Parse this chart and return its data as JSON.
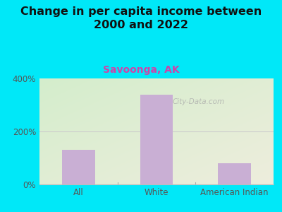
{
  "title": "Change in per capita income between\n2000 and 2022",
  "subtitle": "Savoonga, AK",
  "categories": [
    "All",
    "White",
    "American Indian"
  ],
  "values": [
    130,
    340,
    80
  ],
  "bar_color": "#c9afd4",
  "background_outer": "#00e8f8",
  "grad_color_topleft": "#d4edcc",
  "grad_color_bottomright": "#eeeedd",
  "title_fontsize": 11.5,
  "subtitle_fontsize": 10,
  "subtitle_color": "#cc44aa",
  "tick_label_color": "#555555",
  "ylim": [
    0,
    400
  ],
  "yticks": [
    0,
    200,
    400
  ],
  "ytick_labels": [
    "0%",
    "200%",
    "400%"
  ],
  "watermark": "City-Data.com"
}
